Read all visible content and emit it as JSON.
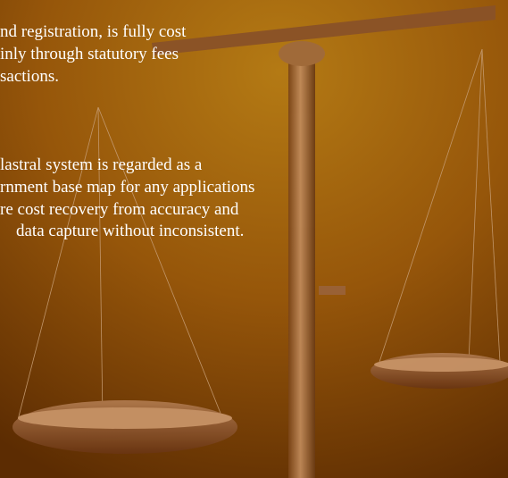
{
  "paragraphs": [
    {
      "lines": [
        "nd registration, is fully cost",
        "inly through statutory fees",
        "sactions."
      ]
    },
    {
      "lines": [
        "lastral system is regarded as a",
        "rnment base map for any applications",
        "re cost recovery from accuracy and",
        "data capture without inconsistent."
      ]
    }
  ]
}
